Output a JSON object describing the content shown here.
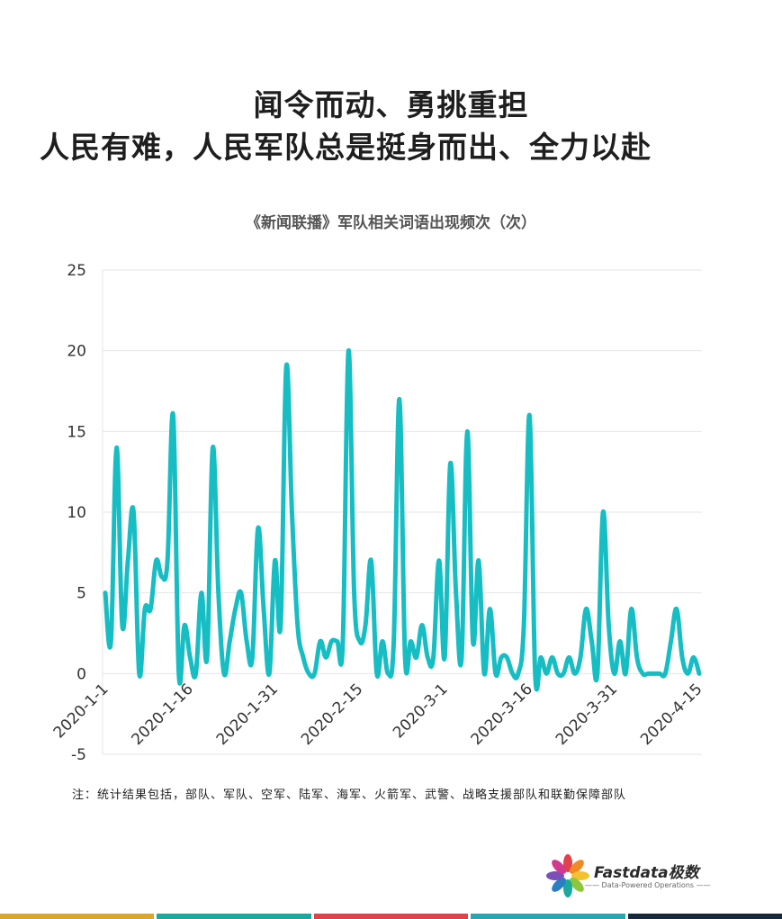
{
  "headline": {
    "line1": "闻令而动、勇挑重担",
    "line2": "人民有难，人民军队总是挺身而出、全力以赴"
  },
  "note": "注：统计结果包括，部队、军队、空军、陆军、海军、火箭军、武警、战略支援部队和联勤保障部队",
  "logo": {
    "text": "Fastdata极数",
    "tagline": "—— Data-Powered Operations ——"
  },
  "colors": {
    "line": "#16bec4",
    "grid": "#e6e6e6",
    "stripes": [
      "#d9a62e",
      "#1aa99c",
      "#e1414b",
      "#2aa6b3",
      "#15293a"
    ]
  },
  "chart_data": {
    "type": "line",
    "title": "《新闻联播》军队相关词语出现频次（次）",
    "xlabel": "",
    "ylabel": "",
    "ylim": [
      -5,
      25
    ],
    "yticks": [
      25,
      20,
      15,
      10,
      5,
      0,
      -5
    ],
    "xtick_labels": [
      "2020-1-1",
      "2020-1-16",
      "2020-1-31",
      "2020-2-15",
      "2020-3-1",
      "2020-3-16",
      "2020-3-31",
      "2020-4-15"
    ],
    "grid": true,
    "legend": "none",
    "x_start": "2020-01-01",
    "series": [
      {
        "values": [
          5,
          2,
          14,
          3,
          7,
          10,
          0,
          4,
          4,
          7,
          6,
          7,
          16,
          0,
          3,
          1,
          0,
          5,
          1,
          14,
          5,
          0,
          2,
          4,
          5,
          2,
          1,
          9,
          4,
          0,
          7,
          3,
          19,
          10,
          3,
          1,
          0,
          0,
          2,
          1,
          2,
          2,
          2,
          20,
          5,
          2,
          3,
          7,
          0,
          2,
          0,
          2,
          17,
          1,
          2,
          1,
          3,
          1,
          1,
          7,
          1,
          13,
          5,
          1,
          15,
          2,
          7,
          0,
          4,
          0,
          1,
          1,
          0,
          0,
          3,
          16,
          0,
          1,
          0,
          1,
          0,
          0,
          1,
          0,
          1,
          4,
          2,
          0,
          10,
          3,
          0,
          2,
          0,
          4,
          1,
          0,
          0,
          0,
          0,
          0,
          2,
          4,
          1,
          0,
          1,
          0
        ]
      }
    ]
  }
}
